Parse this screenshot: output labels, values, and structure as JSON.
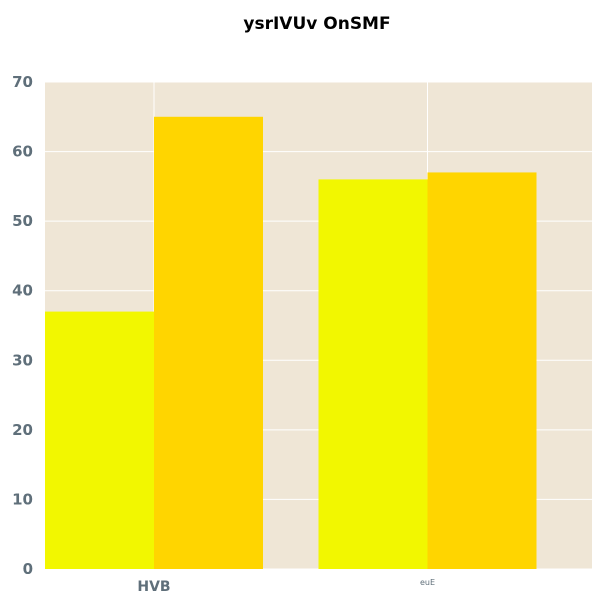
{
  "chart_data": {
    "type": "bar",
    "title": "ysrIVUv  OnSMF",
    "xlabel": "",
    "ylabel": "",
    "categories": [
      "HVB",
      "euE"
    ],
    "series": [
      {
        "values": [
          37,
          56
        ],
        "color": "#f2f700"
      },
      {
        "values": [
          65,
          57
        ],
        "color": "#ffd500"
      }
    ],
    "ylim": [
      0,
      70
    ],
    "yticks": [
      0,
      10,
      20,
      30,
      40,
      50,
      60,
      70
    ],
    "grid": true,
    "background_color": "#efe6d6",
    "grid_color": "#ffffff",
    "legend": "none"
  }
}
